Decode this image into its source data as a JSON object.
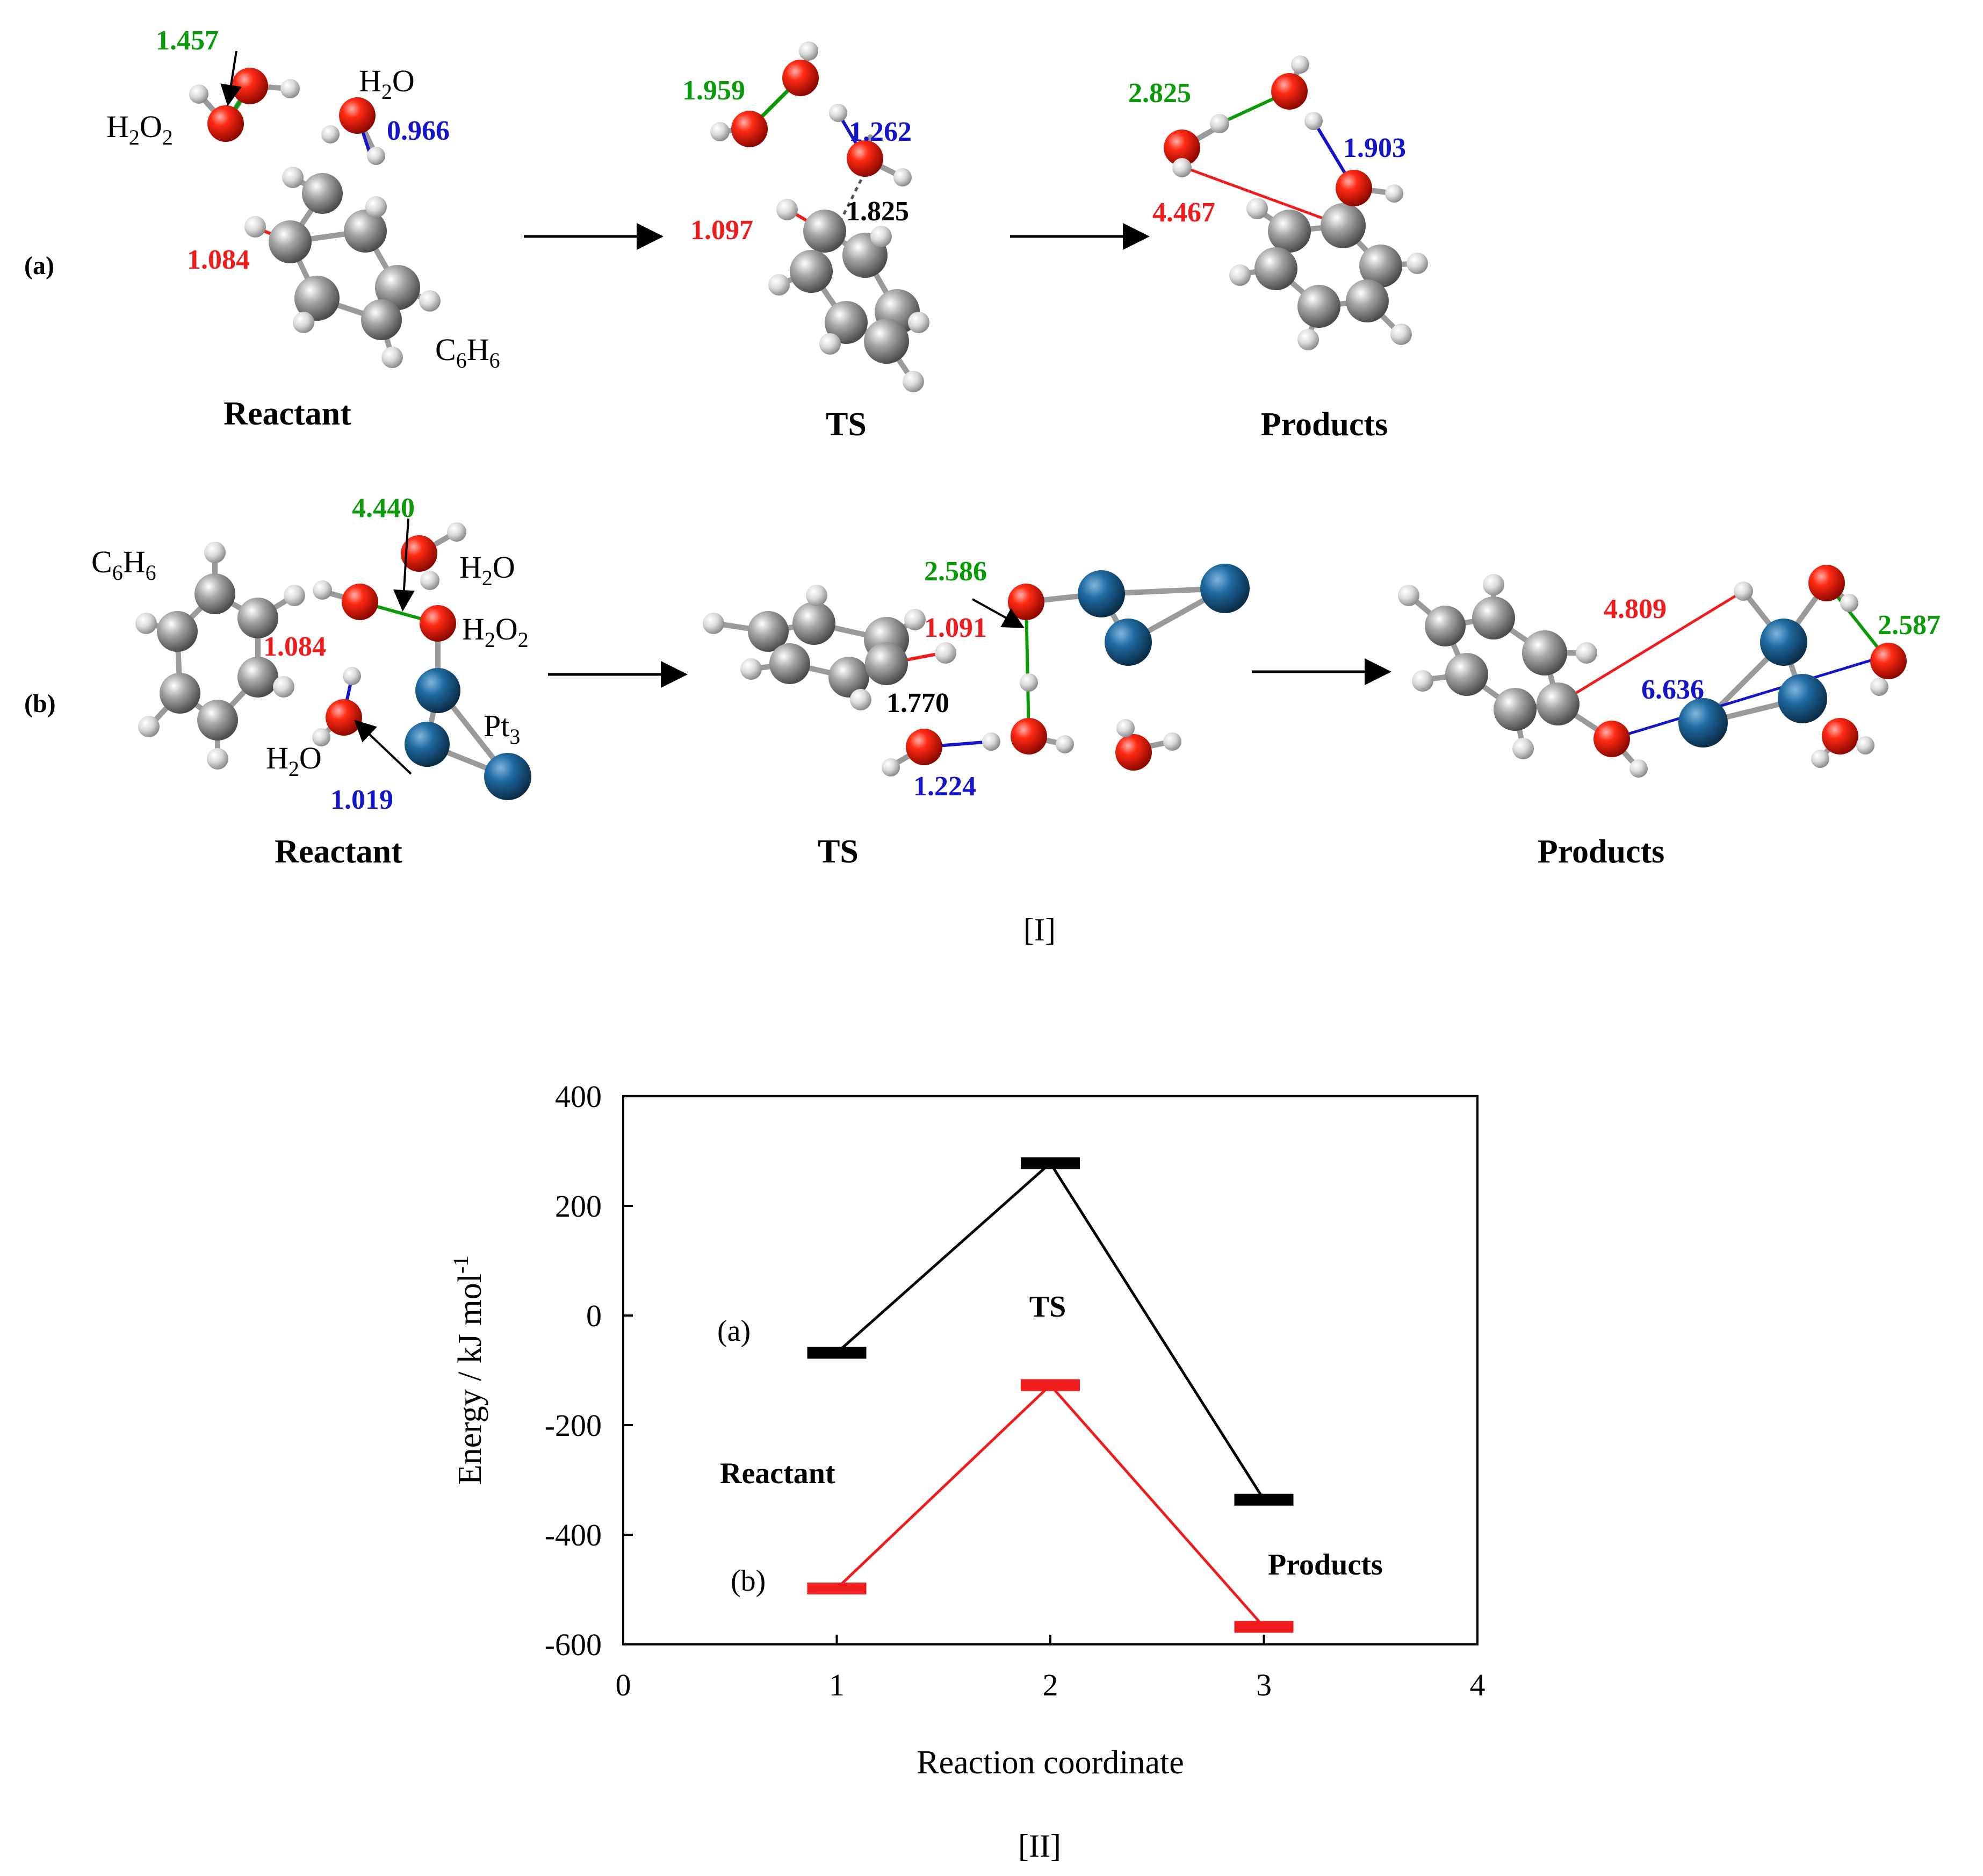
{
  "panel_I": {
    "label": "[I]",
    "row_a": {
      "label": "(a)",
      "reactant": {
        "caption": "Reactant",
        "formula_h2o2": "H2O2",
        "formula_h2o": "H2O",
        "formula_c6h6": "C6H6",
        "d_green": "1.457",
        "d_blue": "0.966",
        "d_red": "1.084"
      },
      "ts": {
        "caption": "TS",
        "d_green": "1.959",
        "d_blue": "1.262",
        "d_red": "1.097",
        "d_black": "1.825"
      },
      "products": {
        "caption": "Products",
        "d_green": "2.825",
        "d_blue": "1.903",
        "d_red": "4.467"
      }
    },
    "row_b": {
      "label": "(b)",
      "reactant": {
        "caption": "Reactant",
        "formula_c6h6": "C6H6",
        "formula_h2o_top": "H2O",
        "formula_h2o2": "H2O2",
        "formula_pt3": "Pt3",
        "formula_h2o_bottom": "H2O",
        "d_green": "4.440",
        "d_red": "1.084",
        "d_blue": "1.019"
      },
      "ts": {
        "caption": "TS",
        "d_green": "2.586",
        "d_red": "1.091",
        "d_black": "1.770",
        "d_blue": "1.224"
      },
      "products": {
        "caption": "Products",
        "d_red": "4.809",
        "d_green": "2.587",
        "d_blue": "6.636"
      }
    }
  },
  "panel_II": {
    "label": "[II]"
  },
  "colors": {
    "red_atom": "#e8140c",
    "carbon": "#9a9a9a",
    "platinum": "#1c5e8e",
    "hydrogen": "#d8d8d8",
    "green": "#0a9a0a",
    "blue": "#1414c8",
    "red": "#ee1c1c",
    "black": "#000000"
  },
  "chart_data": {
    "type": "line",
    "xlabel": "Reaction coordinate",
    "ylabel": "Energy / kJ mol",
    "ylabel_sup": "-1",
    "xlim": [
      0,
      4
    ],
    "ylim": [
      -600,
      400
    ],
    "xticks": [
      "0",
      "1",
      "2",
      "3",
      "4"
    ],
    "yticks": [
      "400",
      "200",
      "0",
      "-200",
      "-400",
      "-600"
    ],
    "grid": false,
    "series": [
      {
        "name": "(a)",
        "color": "#000000",
        "x": [
          1,
          2,
          3
        ],
        "values": [
          -68,
          278,
          -336
        ]
      },
      {
        "name": "(b)",
        "color": "#ee1c1c",
        "x": [
          1,
          2,
          3
        ],
        "values": [
          -498,
          -127,
          -568
        ]
      }
    ],
    "annotations": {
      "ts": "TS",
      "reactant": "Reactant",
      "products": "Products"
    }
  }
}
